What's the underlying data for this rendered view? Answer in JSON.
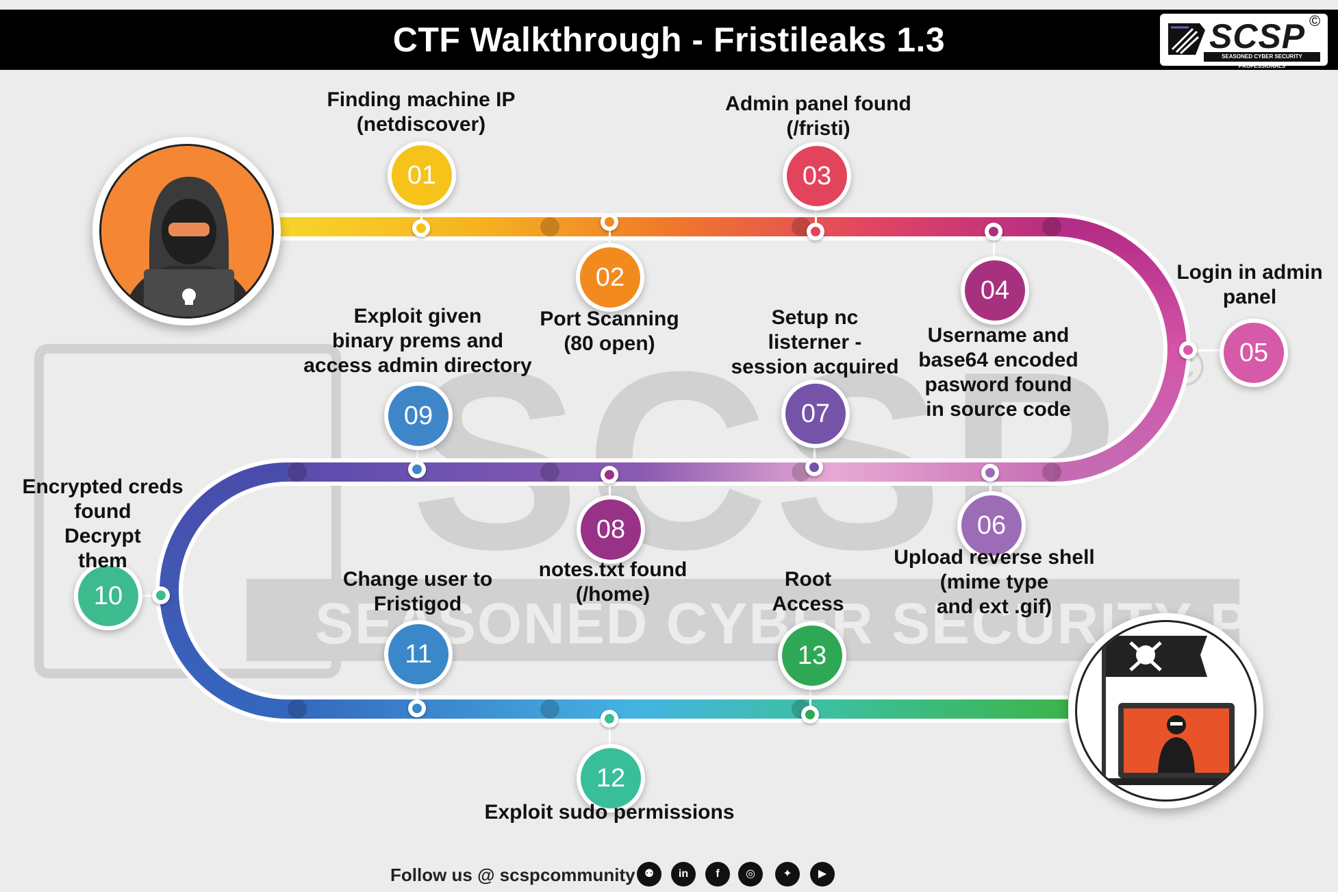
{
  "header": {
    "title": "CTF Walkthrough - Fristileaks 1.3"
  },
  "logo": {
    "name": "SCSP",
    "copyright": "©",
    "tagline": "SEASONED CYBER SECURITY PROFESSIONALS"
  },
  "watermark": {
    "text": "SCSP",
    "tagline": "SEASONED CYBER SECURITY PROFESSIONALS"
  },
  "steps": [
    {
      "num": "01",
      "label": "Finding machine IP\n(netdiscover)",
      "color": "#f5c31a"
    },
    {
      "num": "02",
      "label": "Port Scanning\n(80 open)",
      "color": "#f28a1e"
    },
    {
      "num": "03",
      "label": "Admin panel found\n(/fristi)",
      "color": "#e2445b"
    },
    {
      "num": "04",
      "label": "Username and\nbase64 encoded\npasword found\n in source code",
      "color": "#a8317f"
    },
    {
      "num": "05",
      "label": "Login in admin\npanel",
      "color": "#d65aa8"
    },
    {
      "num": "06",
      "label": "Upload reverse shell\n(mime type\nand ext .gif)",
      "color": "#9d6cb7"
    },
    {
      "num": "07",
      "label": "Setup nc\nlisterner -\nsession acquired",
      "color": "#7553a8"
    },
    {
      "num": "08",
      "label": "notes.txt found\n(/home)",
      "color": "#983286"
    },
    {
      "num": "09",
      "label": "Exploit given\nbinary prems and\naccess admin directory",
      "color": "#3f86c8"
    },
    {
      "num": "10",
      "label": "Encrypted creds\nfound\nDecrypt\nthem",
      "color": "#3dbb8e"
    },
    {
      "num": "11",
      "label": "Change user to\nFristigod",
      "color": "#3a88c9"
    },
    {
      "num": "12",
      "label": "Exploit sudo permissions",
      "color": "#38bf9a"
    },
    {
      "num": "13",
      "label": "Root\nAccess",
      "color": "#2fa856"
    }
  ],
  "footer": {
    "follow": "Follow us @ scspcommunity",
    "social": [
      {
        "icon": "github-icon",
        "glyph": "⚉"
      },
      {
        "icon": "linkedin-icon",
        "glyph": "in"
      },
      {
        "icon": "facebook-icon",
        "glyph": "f"
      },
      {
        "icon": "instagram-icon",
        "glyph": "◎"
      },
      {
        "icon": "twitter-icon",
        "glyph": "✦"
      },
      {
        "icon": "youtube-icon",
        "glyph": "▶"
      }
    ]
  }
}
